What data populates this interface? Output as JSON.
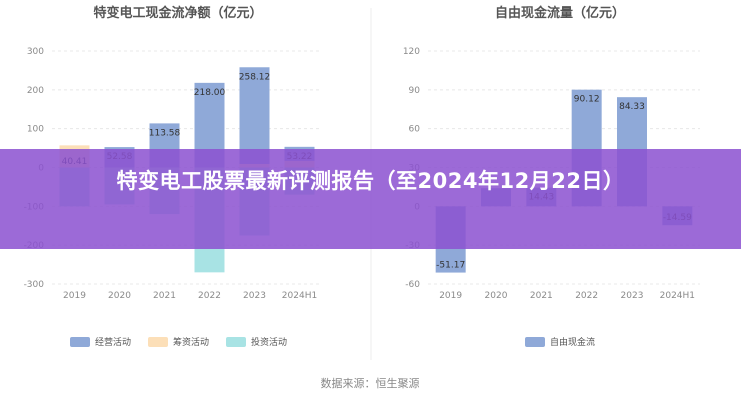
{
  "chart_data": [
    {
      "type": "bar",
      "title": "特变电工现金流净额（亿元）",
      "categories": [
        "2019",
        "2020",
        "2021",
        "2022",
        "2023",
        "2024H1"
      ],
      "ylim": [
        -300,
        300
      ],
      "yticks": [
        300,
        200,
        100,
        0,
        -100,
        -200,
        -300
      ],
      "grid": true,
      "legend_position": "bottom",
      "series": [
        {
          "name": "经营活动",
          "color": "#8fa9d8",
          "values": [
            40.41,
            52.58,
            113.58,
            218.0,
            258.12,
            53.22
          ]
        },
        {
          "name": "筹资活动",
          "color": "#fcdfb8",
          "values": [
            57,
            -10,
            -115,
            0,
            9,
            17
          ]
        },
        {
          "name": "投资活动",
          "color": "#a8e3e4",
          "values": [
            -100,
            -95,
            -120,
            -270,
            -175,
            -70
          ]
        }
      ],
      "data_labels": [
        "40.41",
        "52.58",
        "113.58",
        "218.00",
        "258.12",
        "53.22"
      ]
    },
    {
      "type": "bar",
      "title": "自由现金流量（亿元）",
      "categories": [
        "2019",
        "2020",
        "2021",
        "2022",
        "2023",
        "2024H1"
      ],
      "ylim": [
        -60,
        120
      ],
      "yticks": [
        120,
        90,
        60,
        30,
        0,
        -30,
        -60
      ],
      "grid": true,
      "legend_position": "bottom",
      "series": [
        {
          "name": "自由现金流",
          "color": "#8fa9d8",
          "values": [
            -51.17,
            14,
            14.43,
            90.12,
            84.33,
            -14.59
          ]
        }
      ],
      "data_labels": [
        "-51.17",
        "",
        "14.43",
        "90.12",
        "84.33",
        "-14.59"
      ]
    }
  ],
  "source": "数据来源：恒生聚源",
  "banner": {
    "title": "特变电工股票最新评测报告（至2024年12月22日）"
  }
}
